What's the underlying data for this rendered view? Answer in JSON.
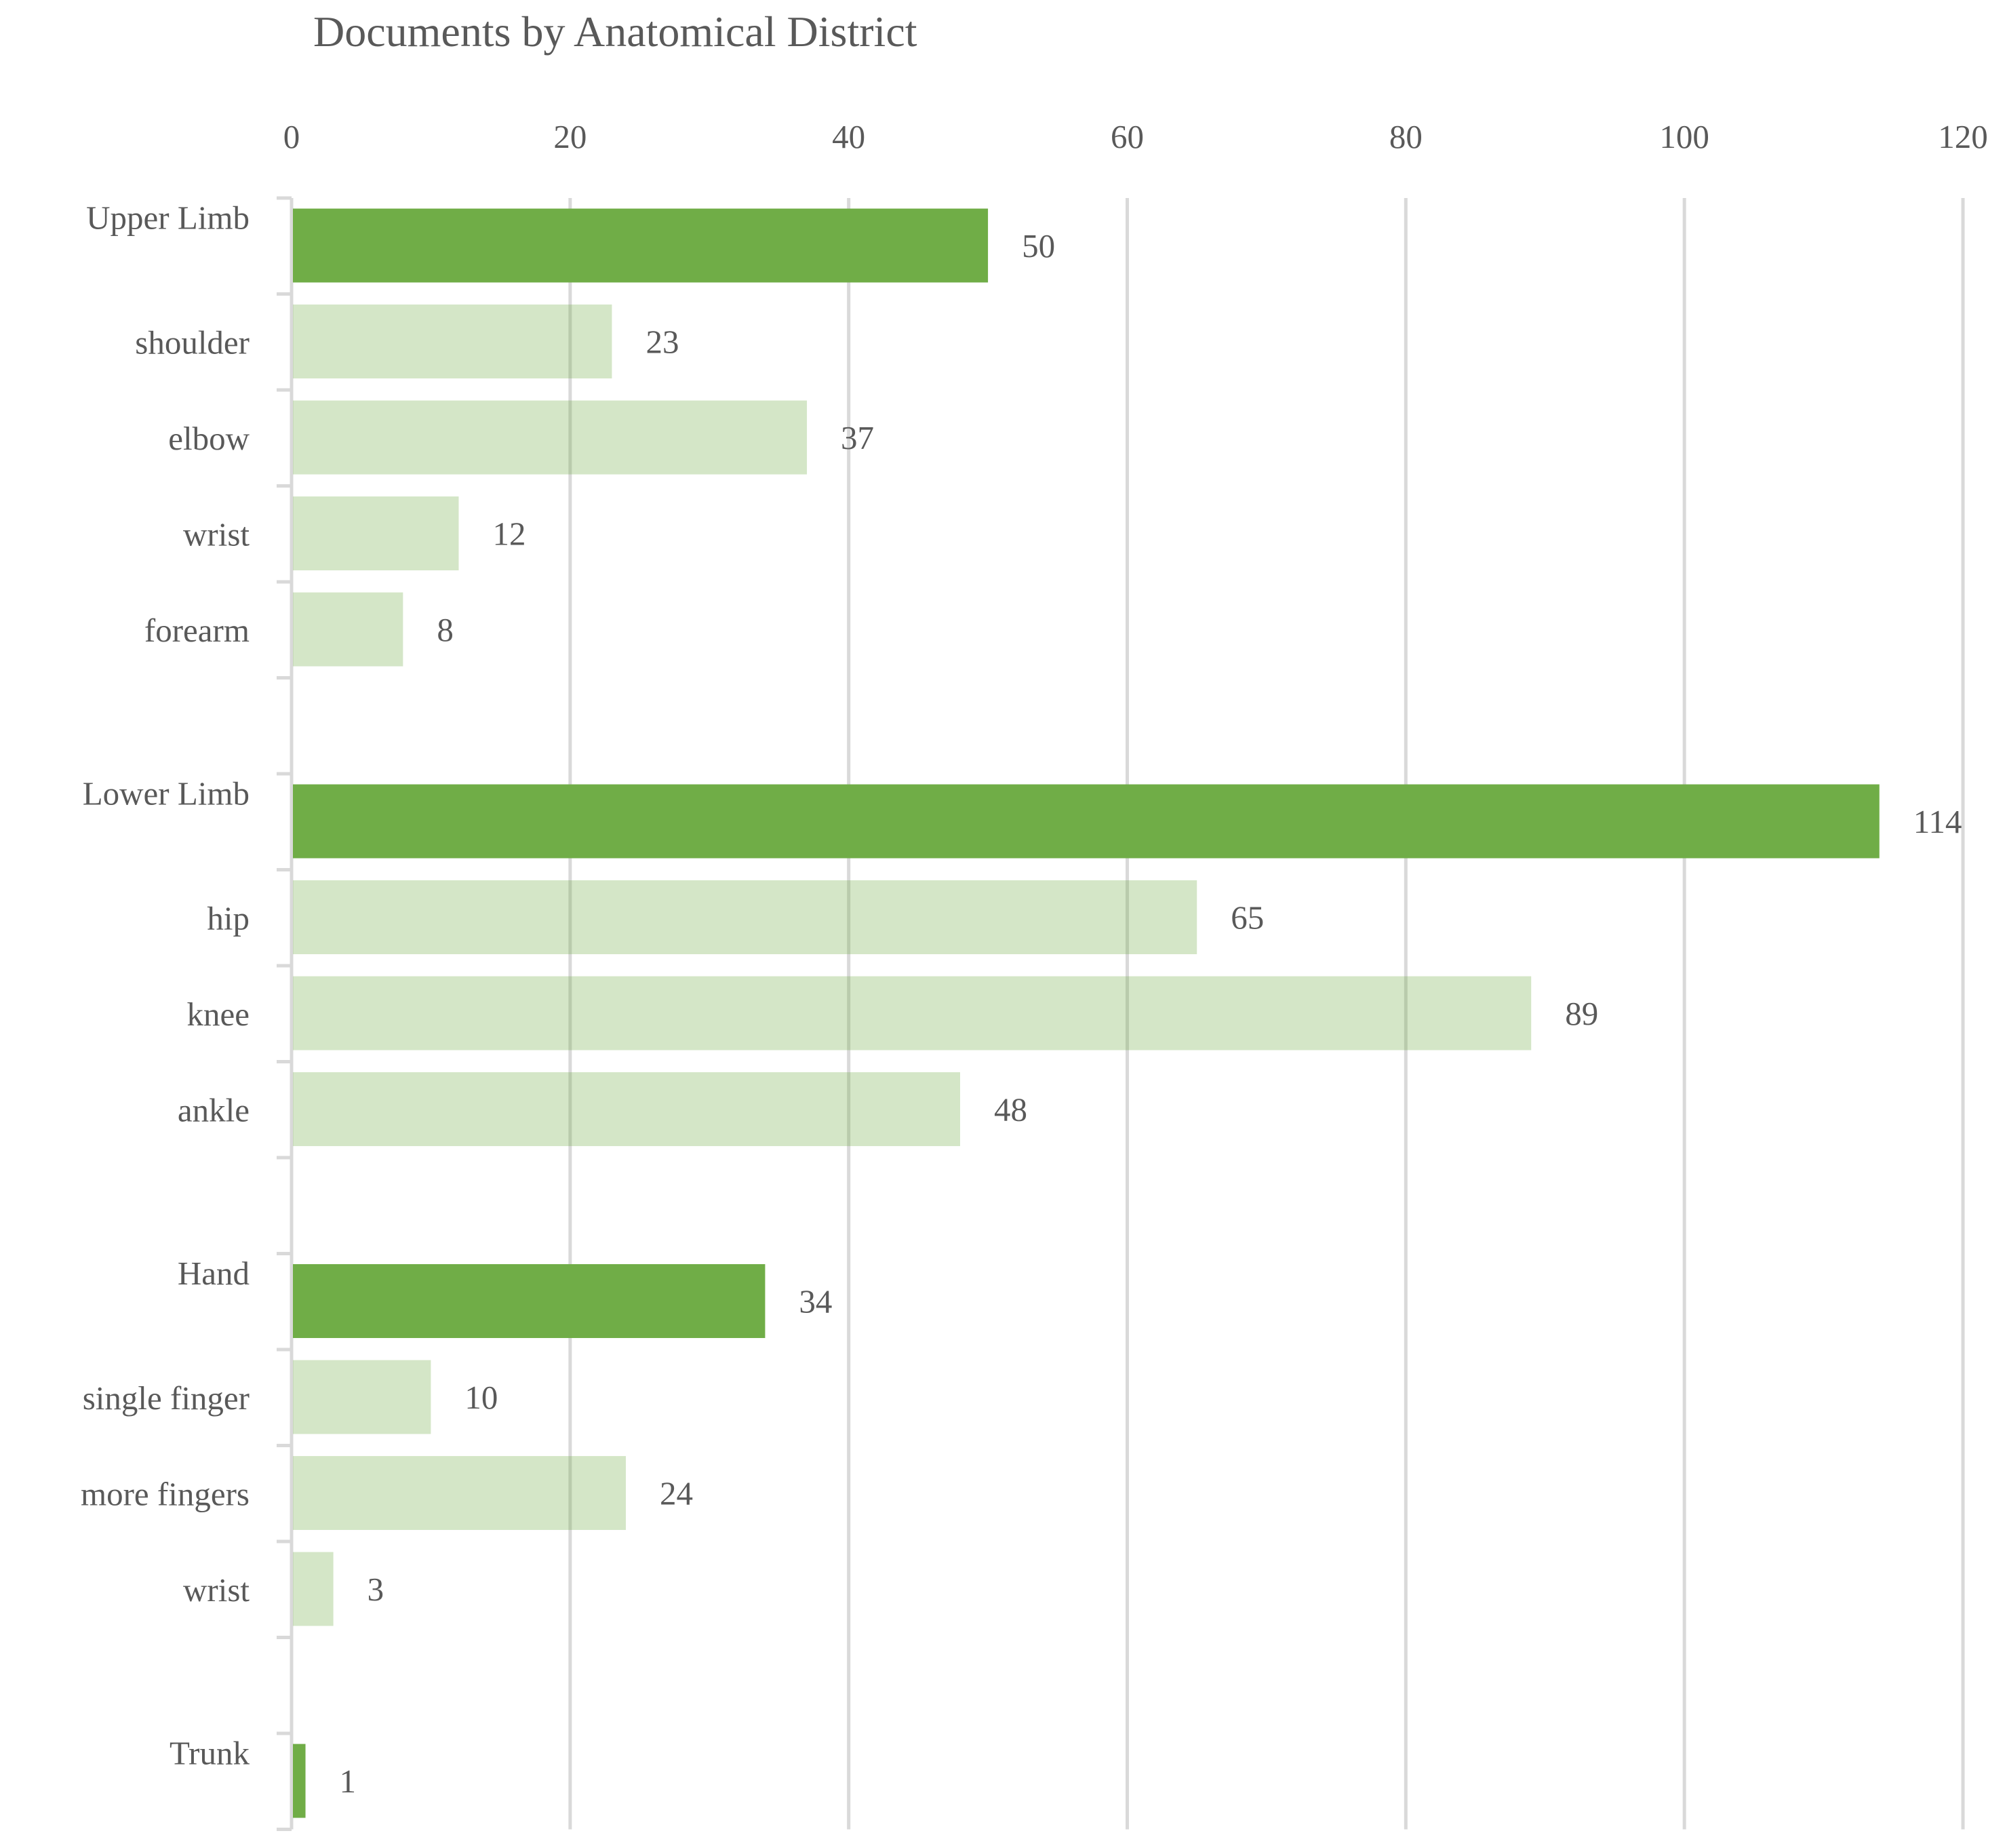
{
  "chart_data": {
    "type": "bar",
    "orientation": "horizontal",
    "title": "Documents by Anatomical District",
    "xlabel": "",
    "ylabel": "",
    "xlim": [
      0,
      120
    ],
    "xticks": [
      0,
      20,
      40,
      60,
      80,
      100,
      120
    ],
    "x_axis_position": "top",
    "grid": true,
    "legend": "none",
    "colors": {
      "main": "#70AD47",
      "sub": "#D5E6C9",
      "grid": "#D9D9D9",
      "text": "#595959"
    },
    "categories": [
      {
        "label": "Upper Limb",
        "value": 50,
        "level": "main"
      },
      {
        "label": "shoulder",
        "value": 23,
        "level": "sub"
      },
      {
        "label": "elbow",
        "value": 37,
        "level": "sub"
      },
      {
        "label": "wrist",
        "value": 12,
        "level": "sub"
      },
      {
        "label": "forearm",
        "value": 8,
        "level": "sub"
      },
      {
        "label": "",
        "value": null,
        "level": "gap"
      },
      {
        "label": "Lower Limb",
        "value": 114,
        "level": "main"
      },
      {
        "label": "hip",
        "value": 65,
        "level": "sub"
      },
      {
        "label": "knee",
        "value": 89,
        "level": "sub"
      },
      {
        "label": "ankle",
        "value": 48,
        "level": "sub"
      },
      {
        "label": "",
        "value": null,
        "level": "gap"
      },
      {
        "label": "Hand",
        "value": 34,
        "level": "main"
      },
      {
        "label": "single finger",
        "value": 10,
        "level": "sub"
      },
      {
        "label": "more fingers",
        "value": 24,
        "level": "sub"
      },
      {
        "label": "wrist",
        "value": 3,
        "level": "sub"
      },
      {
        "label": "",
        "value": null,
        "level": "gap"
      },
      {
        "label": "Trunk",
        "value": 1,
        "level": "main"
      }
    ]
  }
}
